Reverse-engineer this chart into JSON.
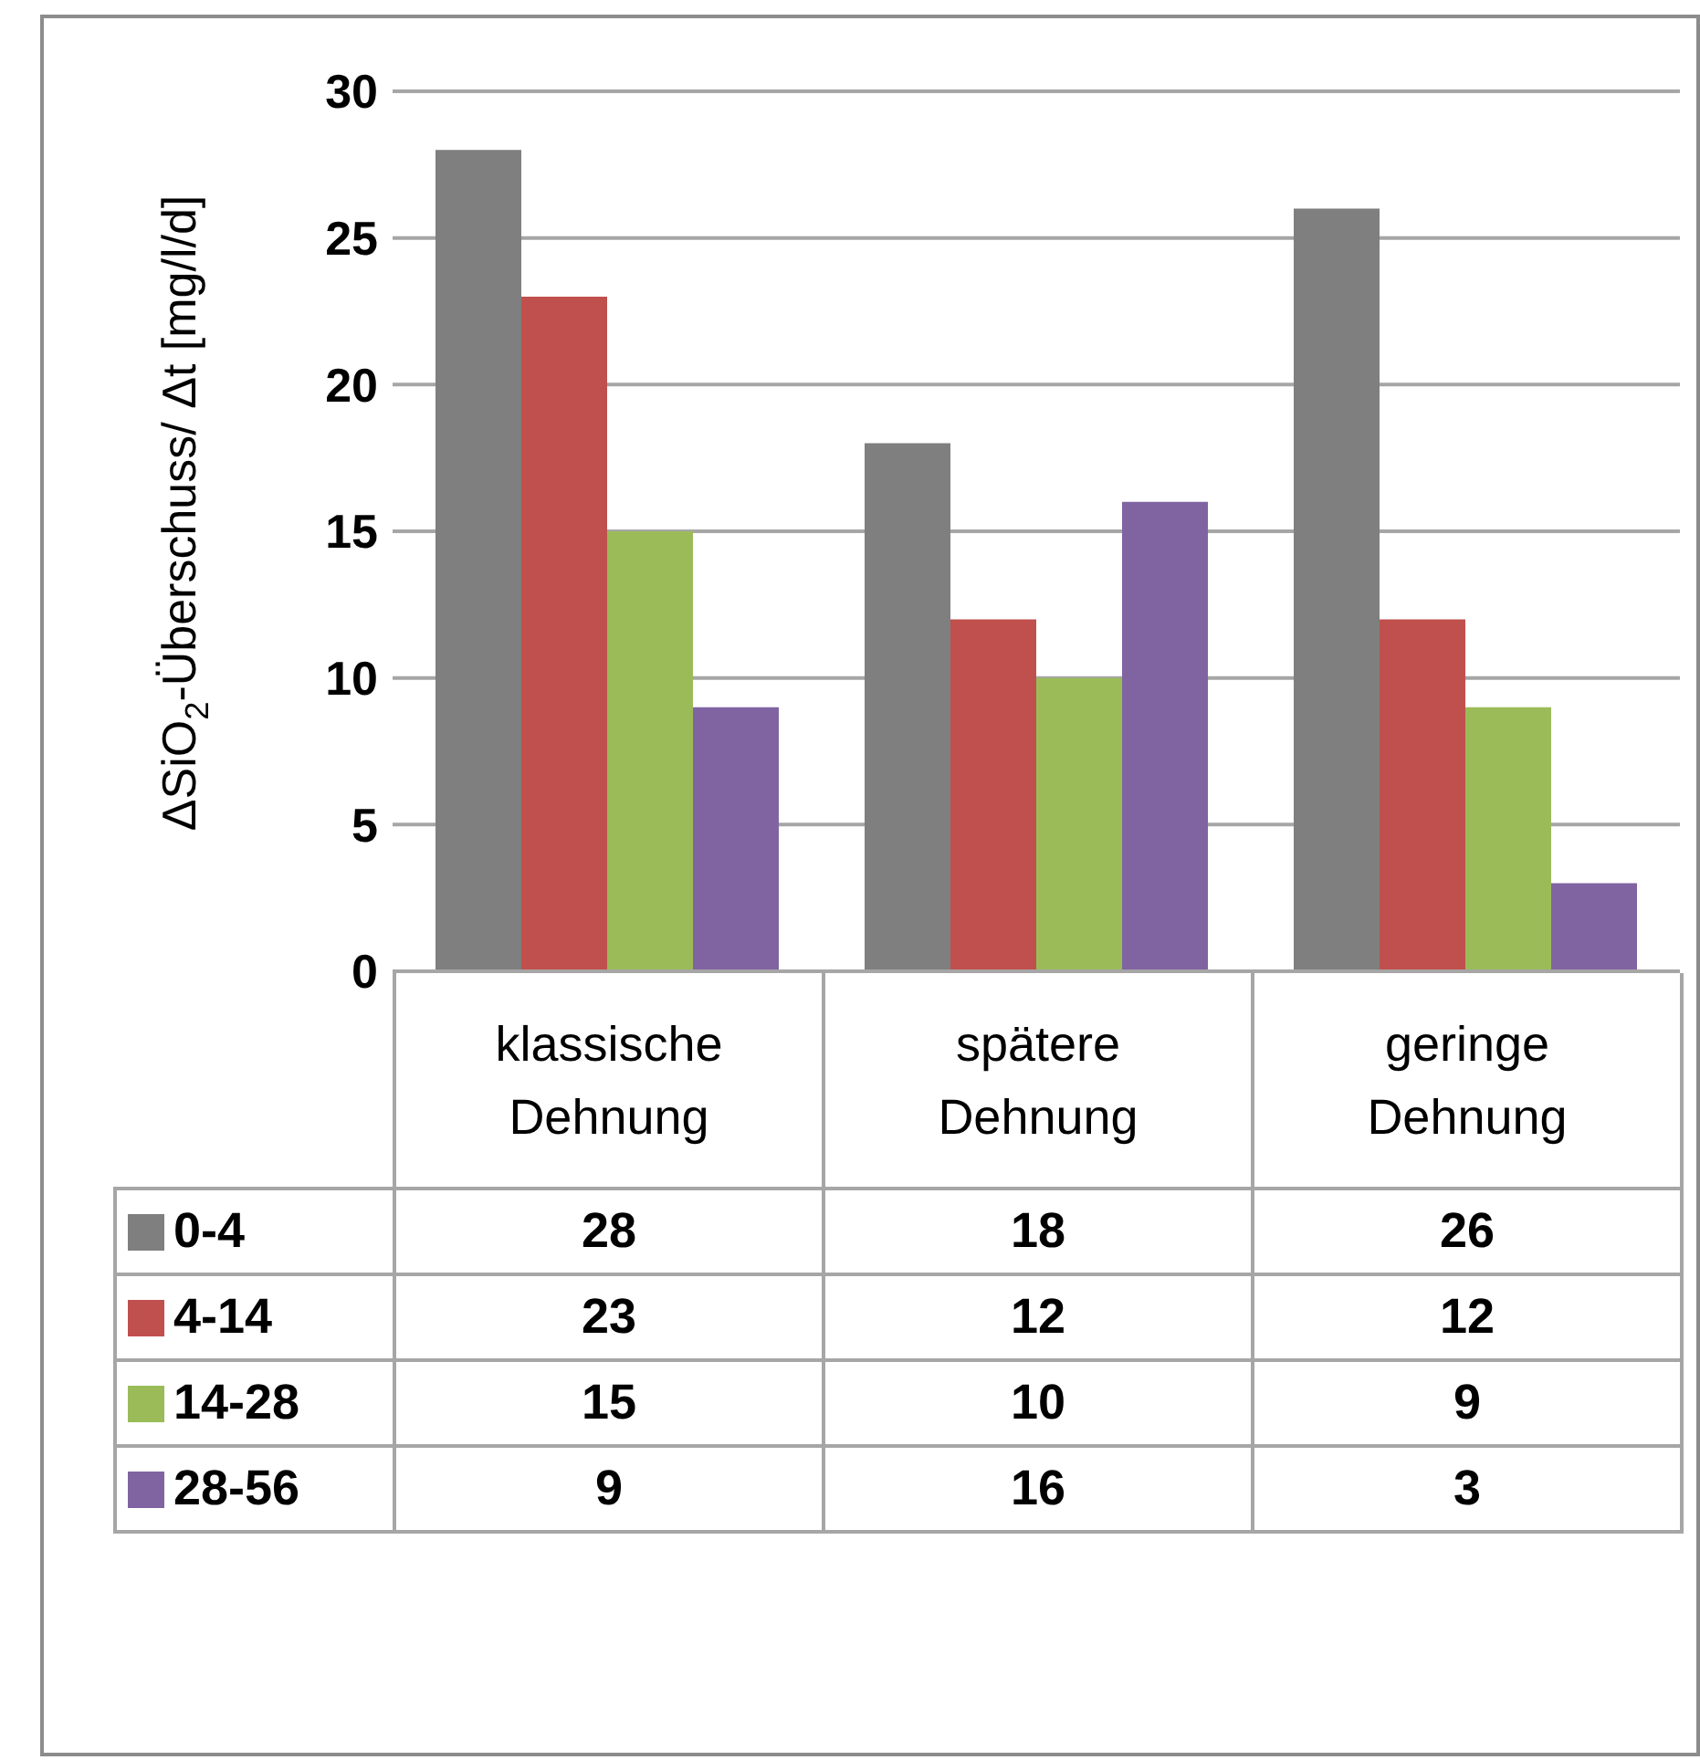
{
  "chart_data": {
    "type": "bar",
    "ylabel": "ΔSiO$_{2}$-Überschuss/ Δt [mg/l/d]",
    "categories": [
      "klassische Dehnung",
      "spätere Dehnung",
      "geringe Dehnung"
    ],
    "series": [
      {
        "name": "0-4",
        "color": "#7f7f7f",
        "values": [
          28,
          18,
          26
        ]
      },
      {
        "name": "4-14",
        "color": "#c0504d",
        "values": [
          23,
          12,
          12
        ]
      },
      {
        "name": "14-28",
        "color": "#9bbb59",
        "values": [
          15,
          10,
          9
        ]
      },
      {
        "name": "28-56",
        "color": "#8064a2",
        "values": [
          9,
          16,
          3
        ]
      }
    ],
    "data_labels": true,
    "ylim": [
      0,
      30
    ],
    "yticks": [
      0,
      5,
      10,
      15,
      20,
      25,
      30
    ],
    "grid": "y",
    "legend": "bottom"
  }
}
